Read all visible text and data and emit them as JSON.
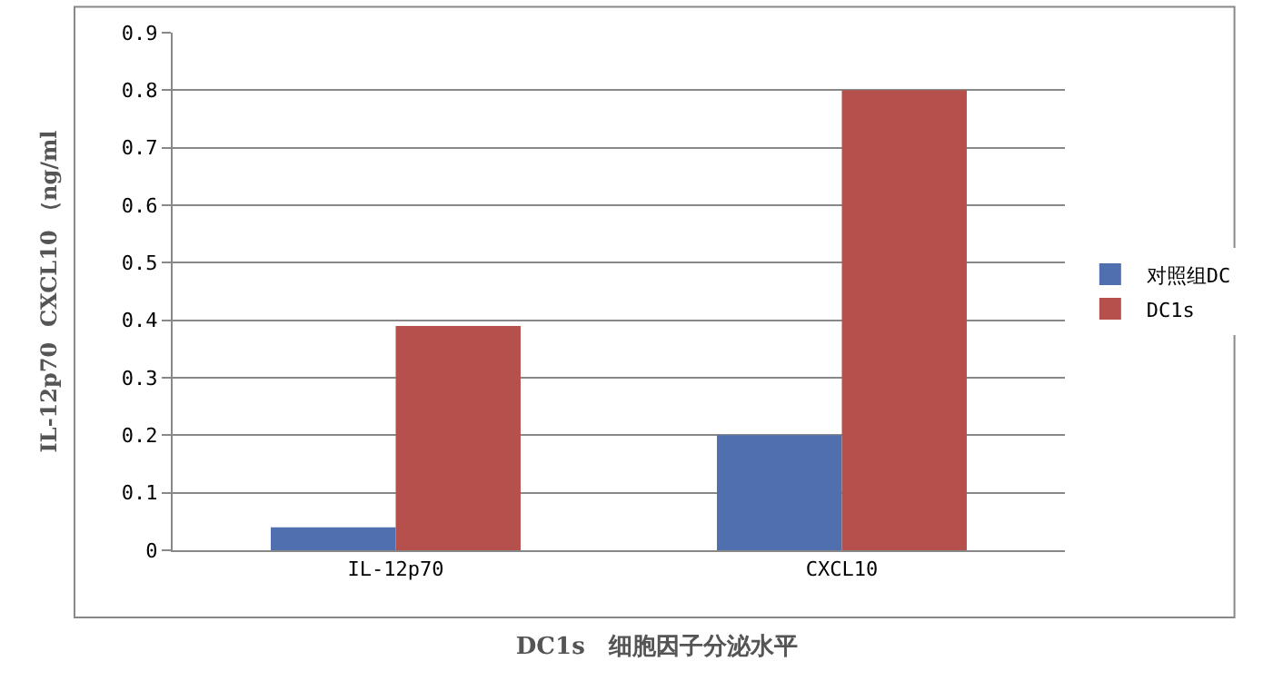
{
  "chart_data": {
    "type": "bar",
    "title": "DC1s　细胞因子分泌水平",
    "ylabel": "IL-12p70  CXCL10 （ng/ml",
    "categories": [
      "IL-12p70",
      "CXCL10"
    ],
    "series": [
      {
        "name": "对照组DC",
        "color": "#4f6faf",
        "values": [
          0.04,
          0.2
        ]
      },
      {
        "name": "DC1s",
        "color": "#b5504d",
        "values": [
          0.39,
          0.8
        ]
      }
    ],
    "ylim": [
      0,
      0.9
    ],
    "yticks": [
      0,
      {
        "value": 0.1,
        "label": "0.1"
      },
      {
        "value": 0.2,
        "label": "0.2"
      },
      {
        "value": 0.3,
        "label": "0.3"
      },
      {
        "value": 0.4,
        "label": "0.4"
      },
      {
        "value": 0.5,
        "label": "0.5"
      },
      {
        "value": 0.6,
        "label": "0.6"
      },
      {
        "value": 0.7,
        "label": "0.7"
      },
      {
        "value": 0.8,
        "label": "0.8"
      },
      {
        "value": 0.9,
        "label": "0.9"
      }
    ],
    "grid": "y",
    "legend": "right"
  }
}
